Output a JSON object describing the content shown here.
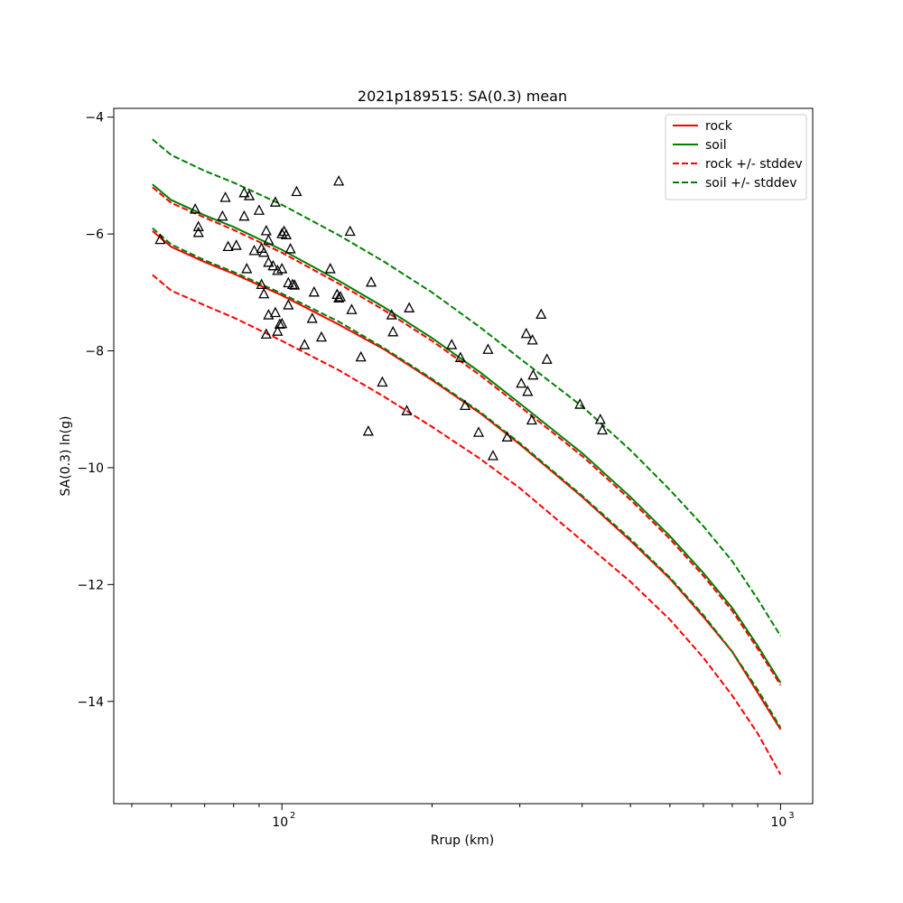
{
  "chart_data": {
    "type": "scatter",
    "title": "2021p189515: SA(0.3) mean",
    "xlabel": "Rrup (km)",
    "ylabel": "SA(0.3) ln(g)",
    "xscale": "log",
    "xlim": [
      46,
      1160
    ],
    "ylim": [
      -15.75,
      -3.85
    ],
    "x_ticks": [
      {
        "value": 100,
        "label": "10",
        "exp": "2"
      },
      {
        "value": 1000,
        "label": "10",
        "exp": "3"
      }
    ],
    "y_ticks": [
      {
        "value": -4,
        "label": "−4"
      },
      {
        "value": -6,
        "label": "−6"
      },
      {
        "value": -8,
        "label": "−8"
      },
      {
        "value": -10,
        "label": "−10"
      },
      {
        "value": -12,
        "label": "−12"
      },
      {
        "value": -14,
        "label": "−14"
      }
    ],
    "legend_position": "top-right",
    "series": [
      {
        "name": "rock",
        "color": "#ff0000",
        "dash": "solid",
        "x": [
          55,
          60,
          70,
          80,
          100,
          130,
          160,
          200,
          250,
          300,
          400,
          500,
          600,
          700,
          800,
          900,
          1000
        ],
        "y": [
          -5.95,
          -6.22,
          -6.48,
          -6.68,
          -7.05,
          -7.55,
          -7.97,
          -8.5,
          -9.07,
          -9.6,
          -10.5,
          -11.25,
          -11.9,
          -12.55,
          -13.15,
          -13.85,
          -14.48
        ]
      },
      {
        "name": "soil",
        "color": "#008000",
        "dash": "solid",
        "x": [
          55,
          60,
          70,
          80,
          100,
          130,
          160,
          200,
          250,
          300,
          400,
          500,
          600,
          700,
          800,
          900,
          1000
        ],
        "y": [
          -5.15,
          -5.42,
          -5.68,
          -5.88,
          -6.27,
          -6.8,
          -7.25,
          -7.78,
          -8.37,
          -8.9,
          -9.75,
          -10.5,
          -11.17,
          -11.8,
          -12.4,
          -13.05,
          -13.68
        ]
      },
      {
        "name": "rock +/- stddev",
        "color": "#ff0000",
        "dash": "dashed",
        "x": [
          55,
          60,
          70,
          80,
          100,
          130,
          160,
          200,
          250,
          300,
          400,
          500,
          600,
          700,
          800,
          900,
          1000
        ],
        "y": [
          -5.2,
          -5.47,
          -5.72,
          -5.93,
          -6.32,
          -6.85,
          -7.3,
          -7.83,
          -8.42,
          -8.95,
          -9.8,
          -10.55,
          -11.22,
          -11.85,
          -12.45,
          -13.1,
          -13.72
        ]
      },
      {
        "name": "",
        "color": "#ff0000",
        "dash": "dashed",
        "x": [
          55,
          60,
          70,
          80,
          100,
          130,
          160,
          200,
          250,
          300,
          400,
          500,
          600,
          700,
          800,
          900,
          1000
        ],
        "y": [
          -6.7,
          -6.97,
          -7.22,
          -7.43,
          -7.83,
          -8.33,
          -8.78,
          -9.3,
          -9.85,
          -10.35,
          -11.25,
          -11.95,
          -12.6,
          -13.25,
          -13.9,
          -14.55,
          -15.25
        ]
      },
      {
        "name": "soil +/- stddev",
        "color": "#008000",
        "dash": "dashed",
        "x": [
          55,
          60,
          70,
          80,
          100,
          130,
          160,
          200,
          250,
          300,
          400,
          500,
          600,
          700,
          800,
          900,
          1000
        ],
        "y": [
          -4.38,
          -4.65,
          -4.92,
          -5.12,
          -5.5,
          -6.02,
          -6.47,
          -7.0,
          -7.6,
          -8.13,
          -8.95,
          -9.7,
          -10.38,
          -11.0,
          -11.6,
          -12.25,
          -12.88
        ]
      },
      {
        "name": "",
        "color": "#008000",
        "dash": "dashed",
        "x": [
          55,
          60,
          70,
          80,
          100,
          130,
          160,
          200,
          250,
          300,
          400,
          500,
          600,
          700,
          800,
          900,
          1000
        ],
        "y": [
          -5.9,
          -6.18,
          -6.45,
          -6.65,
          -7.02,
          -7.5,
          -7.95,
          -8.48,
          -9.05,
          -9.58,
          -10.48,
          -11.22,
          -11.88,
          -12.52,
          -13.15,
          -13.8,
          -14.45
        ]
      }
    ],
    "scatter": {
      "marker": "triangle",
      "color": "#000000",
      "x": [
        57,
        67,
        68,
        68,
        76,
        77,
        78,
        81,
        84,
        84,
        85,
        86,
        88,
        90,
        91,
        91,
        92,
        92,
        93,
        93,
        94,
        94,
        94,
        96,
        97,
        97,
        98,
        98,
        99,
        100,
        100,
        100,
        101,
        102,
        103,
        103,
        104,
        105,
        106,
        107,
        111,
        115,
        116,
        120,
        125,
        129,
        130,
        130,
        131,
        137,
        138,
        144,
        149,
        151,
        159,
        166,
        167,
        178,
        180,
        219,
        228,
        233,
        248,
        259,
        265,
        283,
        302,
        309,
        311,
        317,
        318,
        319,
        331,
        340,
        396,
        435,
        439
      ],
      "y": [
        -6.1,
        -5.58,
        -5.88,
        -5.98,
        -5.7,
        -5.38,
        -6.22,
        -6.2,
        -5.7,
        -5.3,
        -6.6,
        -5.35,
        -6.29,
        -5.6,
        -6.25,
        -6.87,
        -6.32,
        -7.03,
        -5.95,
        -7.72,
        -6.11,
        -7.39,
        -6.49,
        -6.55,
        -7.35,
        -5.46,
        -6.63,
        -7.67,
        -7.55,
        -6.6,
        -6.0,
        -7.54,
        -5.96,
        -6.02,
        -6.84,
        -7.22,
        -6.26,
        -6.87,
        -6.88,
        -5.28,
        -7.9,
        -7.45,
        -7.0,
        -7.77,
        -6.6,
        -7.04,
        -5.1,
        -7.1,
        -7.08,
        -5.96,
        -7.3,
        -8.11,
        -9.38,
        -6.83,
        -8.54,
        -7.39,
        -7.68,
        -9.03,
        -7.27,
        -7.9,
        -8.12,
        -8.94,
        -9.4,
        -7.98,
        -9.8,
        -9.48,
        -8.56,
        -7.71,
        -8.7,
        -9.19,
        -7.82,
        -8.42,
        -7.38,
        -8.15,
        -8.92,
        -9.18,
        -9.36
      ]
    }
  }
}
